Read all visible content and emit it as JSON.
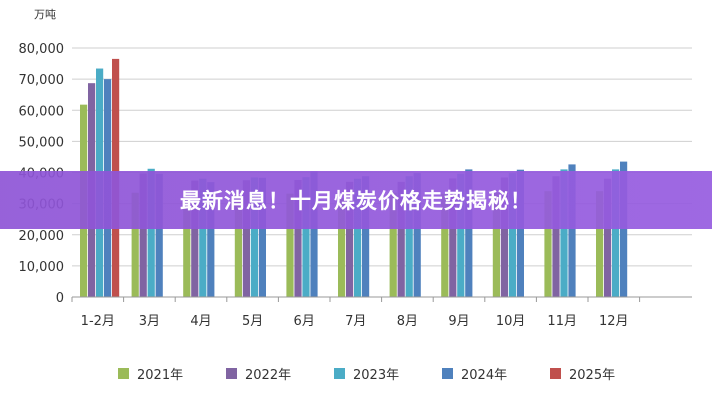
{
  "unit_label": "万吨",
  "banner": {
    "title": "最新消息！十月煤炭价格走势揭秘！"
  },
  "chart_data": {
    "type": "bar",
    "title": "",
    "ylabel": "万吨",
    "ylim": [
      0,
      80000
    ],
    "yticks": [
      "0",
      "10,000",
      "20,000",
      "30,000",
      "40,000",
      "50,000",
      "60,000",
      "70,000",
      "80,000"
    ],
    "categories": [
      "1-2月",
      "3月",
      "4月",
      "5月",
      "6月",
      "7月",
      "8月",
      "9月",
      "10月",
      "11月",
      "12月"
    ],
    "grid": true,
    "legend_position": "bottom",
    "series": [
      {
        "name": "2021年",
        "color": "#9bbb59",
        "values": [
          61800,
          33500,
          32600,
          32800,
          33200,
          31800,
          33500,
          33100,
          33500,
          34000,
          34000
        ]
      },
      {
        "name": "2022年",
        "color": "#8064a2",
        "values": [
          68700,
          39700,
          37400,
          37500,
          37600,
          37000,
          37000,
          38100,
          38400,
          38800,
          38000
        ]
      },
      {
        "name": "2023年",
        "color": "#4bacc6",
        "values": [
          73400,
          41200,
          38000,
          38400,
          38500,
          38000,
          38800,
          39600,
          39800,
          41000,
          41000
        ]
      },
      {
        "name": "2024年",
        "color": "#4f81bd",
        "values": [
          70000,
          39600,
          36900,
          38300,
          40300,
          38800,
          39800,
          41000,
          40900,
          42600,
          43500
        ]
      },
      {
        "name": "2025年",
        "color": "#c0504d",
        "values": [
          76500,
          null,
          null,
          null,
          null,
          null,
          null,
          null,
          null,
          null,
          null
        ]
      }
    ]
  }
}
